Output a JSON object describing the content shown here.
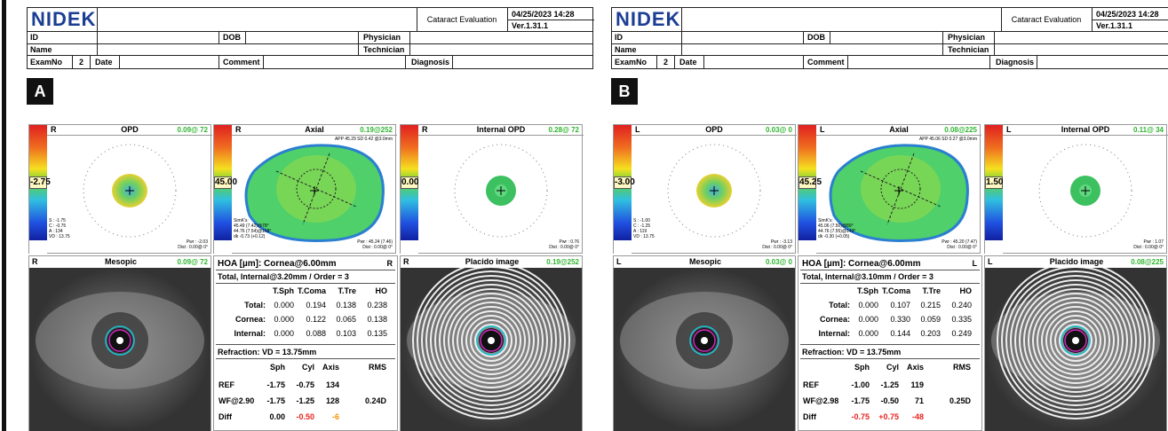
{
  "panels": [
    {
      "label": "A",
      "header": {
        "logo": "NIDEK",
        "report": "Cataract Evaluation",
        "date": "04/25/2023 14:28",
        "version": "Ver.1.31.1",
        "id_label": "ID",
        "dob_label": "DOB",
        "physician_label": "Physician",
        "name_label": "Name",
        "technician_label": "Technician",
        "examno_label": "ExamNo",
        "examno": "2",
        "date_label": "Date",
        "comment_label": "Comment",
        "diagnosis_label": "Diagnosis"
      },
      "maps": [
        {
          "kind": "opd",
          "eye": "R",
          "title": "OPD",
          "value": "0.09@ 72",
          "scale_mark": "-2.75",
          "left_notes": [
            "S : -1.75",
            "C : -0.75",
            "A : 134",
            "VD : 13.75"
          ],
          "right_notes": [
            "Pwr : -2.03",
            "Dist : 0.00@ 0°"
          ]
        },
        {
          "kind": "axial",
          "eye": "R",
          "title": "Axial",
          "value": "0.19@252",
          "scale_mark": "45.00",
          "top_note": "APP 45.29 SD 0.42 @3.0mm",
          "left_notes": [
            "SimK's:",
            "45.49 (7.42)@78°",
            "44.76 (7.54)@168°",
            "dk -0.73 (+0.12)"
          ],
          "right_notes": [
            "Pwr : 45.24 (7.46)",
            "Dist : 0.00@ 0°"
          ]
        },
        {
          "kind": "internal",
          "eye": "R",
          "title": "Internal OPD",
          "value": "0.28@ 72",
          "scale_mark": "0.00",
          "right_notes": [
            "Pwr : 0.76",
            "Dist : 0.00@ 0°"
          ]
        }
      ],
      "mesopic": {
        "eye": "R",
        "title": "Mesopic",
        "value": "0.09@ 72"
      },
      "placido": {
        "eye": "R",
        "title": "Placido image",
        "value": "0.19@252"
      },
      "hoa": {
        "title": "HOA [µm]: Cornea@6.00mm",
        "eye": "R",
        "subtitle": "Total, Internal@3.20mm / Order = 3",
        "columns": [
          "T.Sph",
          "T.Coma",
          "T.Tre",
          "HO"
        ],
        "rows": [
          [
            "Total:",
            "0.000",
            "0.194",
            "0.138",
            "0.238"
          ],
          [
            "Cornea:",
            "0.000",
            "0.122",
            "0.065",
            "0.138"
          ],
          [
            "Internal:",
            "0.000",
            "0.088",
            "0.103",
            "0.135"
          ]
        ]
      },
      "refraction": {
        "title": "Refraction: VD = 13.75mm",
        "columns": [
          "Sph",
          "Cyl",
          "Axis",
          "RMS"
        ],
        "rows": [
          [
            "REF",
            "-1.75",
            "-0.75",
            "134"
          ],
          [
            "WF@2.90",
            "-1.75",
            "-1.25",
            "128",
            "0.24D"
          ],
          [
            "Diff",
            "0.00",
            "-0.50",
            "-6"
          ]
        ],
        "diff_colors": [
          "#000000",
          "#e8231f",
          "#f39200"
        ]
      }
    },
    {
      "label": "B",
      "header": {
        "logo": "NIDEK",
        "report": "Cataract Evaluation",
        "date": "04/25/2023 14:28",
        "version": "Ver.1.31.1",
        "id_label": "ID",
        "dob_label": "DOB",
        "physician_label": "Physician",
        "name_label": "Name",
        "technician_label": "Technician",
        "examno_label": "ExamNo",
        "examno": "2",
        "date_label": "Date",
        "comment_label": "Comment",
        "diagnosis_label": "Diagnosis"
      },
      "maps": [
        {
          "kind": "opd",
          "eye": "L",
          "title": "OPD",
          "value": "0.03@ 0",
          "scale_mark": "-3.00",
          "left_notes": [
            "S : -1.00",
            "C : -1.25",
            "A : 119",
            "VD : 13.75"
          ],
          "right_notes": [
            "Pwr : -3.13",
            "Dist : 0.00@ 0°"
          ]
        },
        {
          "kind": "axial",
          "eye": "L",
          "title": "Axial",
          "value": "0.08@225",
          "scale_mark": "45.25",
          "top_note": "APP 45.06 SD 0.27 @3.0mm",
          "left_notes": [
            "SimK's:",
            "45.06 (7.50)@89°",
            "44.76 (7.55)@149°",
            "dk -0.30 (+0.05)"
          ],
          "right_notes": [
            "Pwr : 45.20 (7.47)",
            "Dist : 0.00@ 0°"
          ]
        },
        {
          "kind": "internal",
          "eye": "L",
          "title": "Internal OPD",
          "value": "0.11@ 34",
          "scale_mark": "1.50",
          "right_notes": [
            "Pwr : 1.07",
            "Dist : 0.00@ 0°"
          ]
        }
      ],
      "mesopic": {
        "eye": "L",
        "title": "Mesopic",
        "value": "0.03@ 0"
      },
      "placido": {
        "eye": "L",
        "title": "Placido image",
        "value": "0.08@225"
      },
      "hoa": {
        "title": "HOA [µm]: Cornea@6.00mm",
        "eye": "L",
        "subtitle": "Total, Internal@3.10mm / Order = 3",
        "columns": [
          "T.Sph",
          "T.Coma",
          "T.Tre",
          "HO"
        ],
        "rows": [
          [
            "Total:",
            "0.000",
            "0.107",
            "0.215",
            "0.240"
          ],
          [
            "Cornea:",
            "0.000",
            "0.330",
            "0.059",
            "0.335"
          ],
          [
            "Internal:",
            "0.000",
            "0.144",
            "0.203",
            "0.249"
          ]
        ]
      },
      "refraction": {
        "title": "Refraction: VD = 13.75mm",
        "columns": [
          "Sph",
          "Cyl",
          "Axis",
          "RMS"
        ],
        "rows": [
          [
            "REF",
            "-1.00",
            "-1.25",
            "119"
          ],
          [
            "WF@2.98",
            "-1.75",
            "-0.50",
            "71",
            "0.25D"
          ],
          [
            "Diff",
            "-0.75",
            "+0.75",
            "-48"
          ]
        ],
        "diff_colors": [
          "#e8231f",
          "#e8231f",
          "#e8231f"
        ]
      }
    }
  ]
}
